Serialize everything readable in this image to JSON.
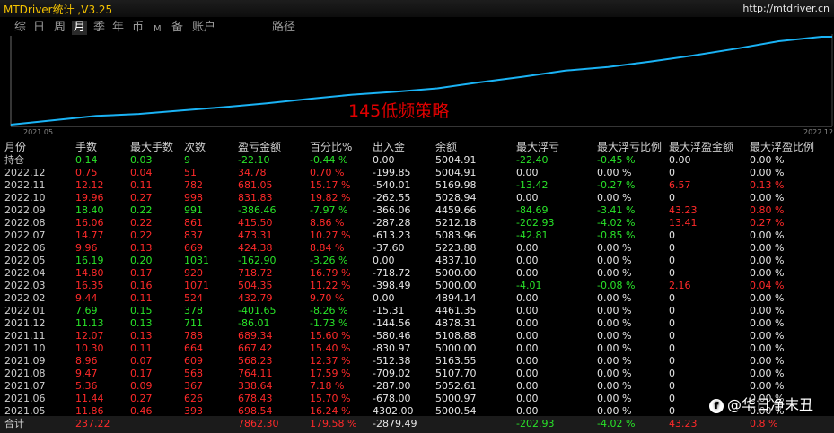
{
  "app": {
    "title": "MTDriver统计 ,V3.25",
    "url": "http://mtdriver.cn"
  },
  "tabs": [
    {
      "label": "综"
    },
    {
      "label": "日"
    },
    {
      "label": "周"
    },
    {
      "label": "月"
    },
    {
      "label": "季"
    },
    {
      "label": "年"
    },
    {
      "label": "币"
    },
    {
      "label": "M"
    },
    {
      "label": "备"
    },
    {
      "label": "账户"
    },
    {
      "label": "路径"
    }
  ],
  "active_tab": "月",
  "chart_data": {
    "type": "line",
    "title": "145低频策略",
    "x_start": "2021.05",
    "x_end": "2022.12",
    "x": [
      "2021.05",
      "2021.06",
      "2021.07",
      "2021.08",
      "2021.09",
      "2021.10",
      "2021.11",
      "2021.12",
      "2022.01",
      "2022.02",
      "2022.03",
      "2022.04",
      "2022.05",
      "2022.06",
      "2022.07",
      "2022.08",
      "2022.09",
      "2022.10",
      "2022.11",
      "2022.12"
    ],
    "series": [
      {
        "values": [
          0,
          11.86,
          23.3,
          28.66,
          38.13,
          47.09,
          57.39,
          69.46,
          80.59,
          88.28,
          97.72,
          114.07,
          128.87,
          145.06,
          155.02,
          169.79,
          185.85,
          204.25,
          224.21,
          236.33
        ]
      }
    ],
    "color": "#1ab3f5"
  },
  "table": {
    "headers": [
      "月份",
      "手数",
      "最大手数",
      "次数",
      "盈亏金额",
      "百分比%",
      "出入金",
      "余额",
      "最大浮亏",
      "最大浮亏比例",
      "最大浮盈金额",
      "最大浮盈比例"
    ],
    "rows": [
      {
        "cells": [
          "持仓",
          "0.14",
          "0.03",
          "9",
          "-22.10",
          "-0.44 %",
          "0.00",
          "5004.91",
          "-22.40",
          "-0.45 %",
          "0.00",
          "0.00 %"
        ],
        "colors": [
          "w",
          "g",
          "g",
          "g",
          "g",
          "g",
          "w",
          "w",
          "g",
          "g",
          "w",
          "w"
        ]
      },
      {
        "cells": [
          "2022.12",
          "0.75",
          "0.04",
          "51",
          "34.78",
          "0.70 %",
          "-199.85",
          "5004.91",
          "0.00",
          "0.00 %",
          "0",
          "0.00 %"
        ],
        "colors": [
          "w",
          "r",
          "r",
          "r",
          "r",
          "r",
          "w",
          "w",
          "w",
          "w",
          "w",
          "w"
        ]
      },
      {
        "cells": [
          "2022.11",
          "12.12",
          "0.11",
          "782",
          "681.05",
          "15.17 %",
          "-540.01",
          "5169.98",
          "-13.42",
          "-0.27 %",
          "6.57",
          "0.13 %"
        ],
        "colors": [
          "w",
          "r",
          "r",
          "r",
          "r",
          "r",
          "w",
          "w",
          "g",
          "g",
          "r",
          "r"
        ]
      },
      {
        "cells": [
          "2022.10",
          "19.96",
          "0.27",
          "998",
          "831.83",
          "19.82 %",
          "-262.55",
          "5028.94",
          "0.00",
          "0.00 %",
          "0",
          "0.00 %"
        ],
        "colors": [
          "w",
          "r",
          "r",
          "r",
          "r",
          "r",
          "w",
          "w",
          "w",
          "w",
          "w",
          "w"
        ]
      },
      {
        "cells": [
          "2022.09",
          "18.40",
          "0.22",
          "991",
          "-386.46",
          "-7.97 %",
          "-366.06",
          "4459.66",
          "-84.69",
          "-3.41 %",
          "43.23",
          "0.80 %"
        ],
        "colors": [
          "w",
          "g",
          "g",
          "g",
          "g",
          "g",
          "w",
          "w",
          "g",
          "g",
          "r",
          "r"
        ]
      },
      {
        "cells": [
          "2022.08",
          "16.06",
          "0.22",
          "861",
          "415.50",
          "8.86 %",
          "-287.28",
          "5212.18",
          "-202.93",
          "-4.02 %",
          "13.41",
          "0.27 %"
        ],
        "colors": [
          "w",
          "r",
          "r",
          "r",
          "r",
          "r",
          "w",
          "w",
          "g",
          "g",
          "r",
          "r"
        ]
      },
      {
        "cells": [
          "2022.07",
          "14.77",
          "0.22",
          "837",
          "473.31",
          "10.27 %",
          "-613.23",
          "5083.96",
          "-42.81",
          "-0.85 %",
          "0",
          "0.00 %"
        ],
        "colors": [
          "w",
          "r",
          "r",
          "r",
          "r",
          "r",
          "w",
          "w",
          "g",
          "g",
          "w",
          "w"
        ]
      },
      {
        "cells": [
          "2022.06",
          "9.96",
          "0.13",
          "669",
          "424.38",
          "8.84 %",
          "-37.60",
          "5223.88",
          "0.00",
          "0.00 %",
          "0",
          "0.00 %"
        ],
        "colors": [
          "w",
          "r",
          "r",
          "r",
          "r",
          "r",
          "w",
          "w",
          "w",
          "w",
          "w",
          "w"
        ]
      },
      {
        "cells": [
          "2022.05",
          "16.19",
          "0.20",
          "1031",
          "-162.90",
          "-3.26 %",
          "0.00",
          "4837.10",
          "0.00",
          "0.00 %",
          "0",
          "0.00 %"
        ],
        "colors": [
          "w",
          "g",
          "g",
          "g",
          "g",
          "g",
          "w",
          "w",
          "w",
          "w",
          "w",
          "w"
        ]
      },
      {
        "cells": [
          "2022.04",
          "14.80",
          "0.17",
          "920",
          "718.72",
          "16.79 %",
          "-718.72",
          "5000.00",
          "0.00",
          "0.00 %",
          "0",
          "0.00 %"
        ],
        "colors": [
          "w",
          "r",
          "r",
          "r",
          "r",
          "r",
          "w",
          "w",
          "w",
          "w",
          "w",
          "w"
        ]
      },
      {
        "cells": [
          "2022.03",
          "16.35",
          "0.16",
          "1071",
          "504.35",
          "11.22 %",
          "-398.49",
          "5000.00",
          "-4.01",
          "-0.08 %",
          "2.16",
          "0.04 %"
        ],
        "colors": [
          "w",
          "r",
          "r",
          "r",
          "r",
          "r",
          "w",
          "w",
          "g",
          "g",
          "r",
          "r"
        ]
      },
      {
        "cells": [
          "2022.02",
          "9.44",
          "0.11",
          "524",
          "432.79",
          "9.70 %",
          "0.00",
          "4894.14",
          "0.00",
          "0.00 %",
          "0",
          "0.00 %"
        ],
        "colors": [
          "w",
          "r",
          "r",
          "r",
          "r",
          "r",
          "w",
          "w",
          "w",
          "w",
          "w",
          "w"
        ]
      },
      {
        "cells": [
          "2022.01",
          "7.69",
          "0.15",
          "378",
          "-401.65",
          "-8.26 %",
          "-15.31",
          "4461.35",
          "0.00",
          "0.00 %",
          "0",
          "0.00 %"
        ],
        "colors": [
          "w",
          "g",
          "g",
          "g",
          "g",
          "g",
          "w",
          "w",
          "w",
          "w",
          "w",
          "w"
        ]
      },
      {
        "cells": [
          "2021.12",
          "11.13",
          "0.13",
          "711",
          "-86.01",
          "-1.73 %",
          "-144.56",
          "4878.31",
          "0.00",
          "0.00 %",
          "0",
          "0.00 %"
        ],
        "colors": [
          "w",
          "g",
          "g",
          "g",
          "g",
          "g",
          "w",
          "w",
          "w",
          "w",
          "w",
          "w"
        ]
      },
      {
        "cells": [
          "2021.11",
          "12.07",
          "0.13",
          "788",
          "689.34",
          "15.60 %",
          "-580.46",
          "5108.88",
          "0.00",
          "0.00 %",
          "0",
          "0.00 %"
        ],
        "colors": [
          "w",
          "r",
          "r",
          "r",
          "r",
          "r",
          "w",
          "w",
          "w",
          "w",
          "w",
          "w"
        ]
      },
      {
        "cells": [
          "2021.10",
          "10.30",
          "0.11",
          "664",
          "667.42",
          "15.40 %",
          "-830.97",
          "5000.00",
          "0.00",
          "0.00 %",
          "0",
          "0.00 %"
        ],
        "colors": [
          "w",
          "r",
          "r",
          "r",
          "r",
          "r",
          "w",
          "w",
          "w",
          "w",
          "w",
          "w"
        ]
      },
      {
        "cells": [
          "2021.09",
          "8.96",
          "0.07",
          "609",
          "568.23",
          "12.37 %",
          "-512.38",
          "5163.55",
          "0.00",
          "0.00 %",
          "0",
          "0.00 %"
        ],
        "colors": [
          "w",
          "r",
          "r",
          "r",
          "r",
          "r",
          "w",
          "w",
          "w",
          "w",
          "w",
          "w"
        ]
      },
      {
        "cells": [
          "2021.08",
          "9.47",
          "0.17",
          "568",
          "764.11",
          "17.59 %",
          "-709.02",
          "5107.70",
          "0.00",
          "0.00 %",
          "0",
          "0.00 %"
        ],
        "colors": [
          "w",
          "r",
          "r",
          "r",
          "r",
          "r",
          "w",
          "w",
          "w",
          "w",
          "w",
          "w"
        ]
      },
      {
        "cells": [
          "2021.07",
          "5.36",
          "0.09",
          "367",
          "338.64",
          "7.18 %",
          "-287.00",
          "5052.61",
          "0.00",
          "0.00 %",
          "0",
          "0.00 %"
        ],
        "colors": [
          "w",
          "r",
          "r",
          "r",
          "r",
          "r",
          "w",
          "w",
          "w",
          "w",
          "w",
          "w"
        ]
      },
      {
        "cells": [
          "2021.06",
          "11.44",
          "0.27",
          "626",
          "678.43",
          "15.70 %",
          "-678.00",
          "5000.97",
          "0.00",
          "0.00 %",
          "0",
          "0.00 %"
        ],
        "colors": [
          "w",
          "r",
          "r",
          "r",
          "r",
          "r",
          "w",
          "w",
          "w",
          "w",
          "w",
          "w"
        ]
      },
      {
        "cells": [
          "2021.05",
          "11.86",
          "0.46",
          "393",
          "698.54",
          "16.24 %",
          "4302.00",
          "5000.54",
          "0.00",
          "0.00 %",
          "0",
          "0.00 %"
        ],
        "colors": [
          "w",
          "r",
          "r",
          "r",
          "r",
          "r",
          "w",
          "w",
          "w",
          "w",
          "w",
          "w"
        ]
      }
    ],
    "total": {
      "cells": [
        "合计",
        "237.22",
        "",
        "",
        "7862.30",
        "179.58 %",
        "-2879.49",
        "",
        "-202.93",
        "-4.02 %",
        "43.23",
        "0.8 %"
      ],
      "colors": [
        "w",
        "r",
        "r",
        "r",
        "r",
        "r",
        "w",
        "w",
        "g",
        "g",
        "r",
        "r"
      ]
    }
  },
  "watermark": {
    "text": "@华日净末丑",
    "icon": "toutiao-icon"
  },
  "colors": {
    "profit": "#ff2a2a",
    "loss": "#29e329",
    "line": "#1ab3f5",
    "title_yellow": "#f4c200"
  }
}
